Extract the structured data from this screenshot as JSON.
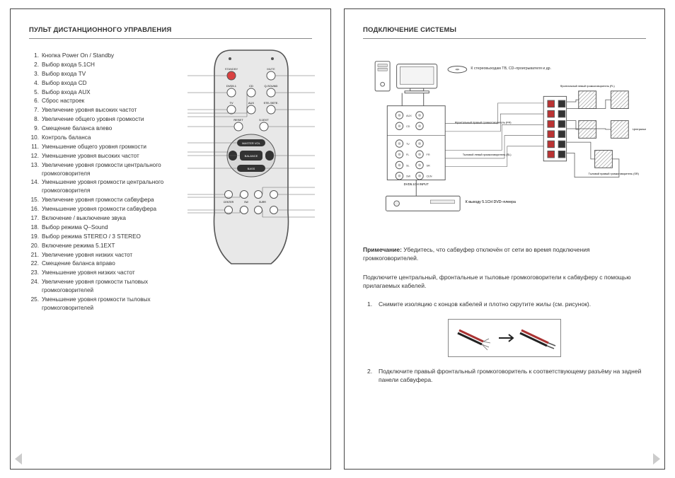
{
  "colors": {
    "text": "#333333",
    "border": "#444444",
    "line": "#888888",
    "remote_body": "#e8e8e8",
    "remote_stroke": "#555555",
    "btn_fill": "#ffffff",
    "btn_red": "#d94040",
    "diagram_stroke": "#555555",
    "speaker_fill": "#cfcfcf",
    "hatch": "#888888"
  },
  "left": {
    "title": "ПУЛЬТ ДИСТАНЦИОННОГО УПРАВЛЕНИЯ",
    "items": [
      "Кнопка Power On / Standby",
      "Выбор входа 5.1CH",
      "Выбор входа TV",
      "Выбор входа CD",
      "Выбор входа AUX",
      "Сброс настроек",
      "Увеличение уровня высоких частот",
      "Увеличение общего уровня громкости",
      "Смещение баланса влево",
      "Контроль баланса",
      "Уменьшение общего уровня громкости",
      "Уменьшение уровня высоких частот",
      "Увеличение уровня громкости центрального громкоговорителя",
      "Уменьшение уровня громкости центрального громкоговорителя",
      "Увеличение уровня громкости сабвуфера",
      "Уменьшение уровня громкости сабвуфера",
      "Включение / выключение звука",
      "Выбор режима Q–Sound",
      "Выбор режима STEREO / 3 STEREO",
      "Включение режима 5.1EXT",
      "Увеличение уровня низких частот",
      "Смещение баланса вправо",
      "Уменьшение уровня низких частот",
      "Увеличение уровня громкости тыловых громкоговорителей",
      "Уменьшение уровня громкости тыловых громкоговорителей"
    ],
    "remote_labels": {
      "standby": "STANDBY",
      "mute": "MUTE",
      "dvd": "DVD5.1",
      "cd": "CD",
      "qsound": "Q-SOUND",
      "tv": "TV",
      "aux": "AUX",
      "ste": "STE./3STE.",
      "reset": "RESET",
      "ext": "5.1EXT",
      "master": "MASTER VOL",
      "balance": "BALANCE",
      "bass": "BASS",
      "center": "CENTER",
      "sw": "SW",
      "surr": "SURR"
    }
  },
  "right": {
    "title": "ПОДКЛЮЧЕНИЕ СИСТЕМЫ",
    "diagram_labels": {
      "stereo_out": "К стереовыходам ТВ, CD–проигрывателя и др.",
      "dvd_out": "К выходу 5.1CH DVD–плеера",
      "fl": "Фронтальный левый громкоговоритель (FL)",
      "fr": "Фронтальный правый громкоговоритель (FR)",
      "cen": "Центральный громкоговоритель (CEN)",
      "sl": "Тыловой левый громкоговоритель (SL)",
      "sr": "Тыловой правый громкоговоритель (SR)",
      "input": "DVD5.1CH INPUT",
      "ports": [
        "AUX",
        "CD",
        "TV",
        "FL",
        "FR",
        "SL",
        "SR",
        "SW",
        "CEN"
      ]
    },
    "note_label": "Примечание:",
    "note_text": "Убедитесь, что сабвуфер отключён от сети во время подключения громкоговорителей.",
    "para": "Подключите центральный, фронтальные и тыловые громкоговорители к сабвуферу с помощью прилагаемых кабелей.",
    "steps": [
      "Снимите изоляцию с концов кабелей и плотно скрутите жилы (см. рисунок).",
      "Подключите правый фронтальный громкоговоритель к соответствующему разъёму на задней панели сабвуфера."
    ]
  }
}
